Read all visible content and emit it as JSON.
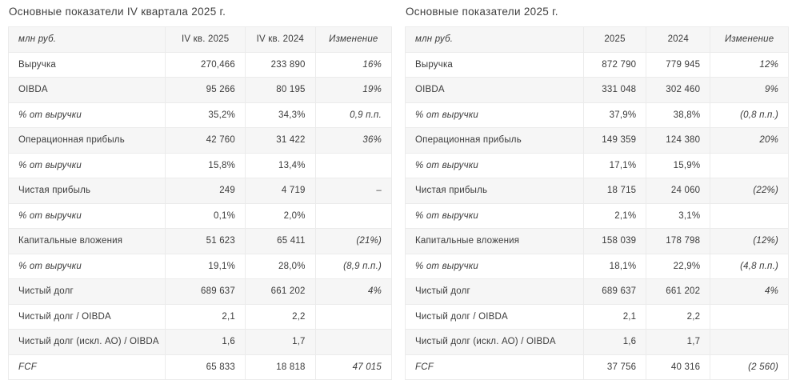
{
  "colors": {
    "background": "#ffffff",
    "stripe_row": "#f6f6f6",
    "border": "#ebebeb",
    "text": "#3b3b3b",
    "title": "#3f3f3f"
  },
  "tables": [
    {
      "title": "Основные показатели IV квартала 2025 г.",
      "columns": [
        "млн руб.",
        "IV кв. 2025",
        "IV кв. 2024",
        "Изменение"
      ],
      "rows": [
        {
          "label": "Выручка",
          "v1": "270,466",
          "v2": "233 890",
          "change": "16%",
          "italic": false
        },
        {
          "label": "OIBDA",
          "v1": "95 266",
          "v2": "80 195",
          "change": "19%",
          "italic": false
        },
        {
          "label": "% от выручки",
          "v1": "35,2%",
          "v2": "34,3%",
          "change": "0,9 п.п.",
          "italic": true
        },
        {
          "label": "Операционная прибыль",
          "v1": "42 760",
          "v2": "31 422",
          "change": "36%",
          "italic": false
        },
        {
          "label": "% от выручки",
          "v1": "15,8%",
          "v2": "13,4%",
          "change": "",
          "italic": true
        },
        {
          "label": "Чистая прибыль",
          "v1": "249",
          "v2": "4 719",
          "change": "–",
          "italic": false
        },
        {
          "label": "% от выручки",
          "v1": "0,1%",
          "v2": "2,0%",
          "change": "",
          "italic": true
        },
        {
          "label": "Капитальные вложения",
          "v1": "51 623",
          "v2": "65 411",
          "change": "(21%)",
          "italic": false
        },
        {
          "label": "% от выручки",
          "v1": "19,1%",
          "v2": "28,0%",
          "change": "(8,9 п.п.)",
          "italic": true
        },
        {
          "label": "Чистый долг",
          "v1": "689 637",
          "v2": "661 202",
          "change": "4%",
          "italic": false
        },
        {
          "label": "Чистый долг / OIBDA",
          "v1": "2,1",
          "v2": "2,2",
          "change": "",
          "italic": false
        },
        {
          "label": "Чистый долг (искл. АО) / OIBDA",
          "v1": "1,6",
          "v2": "1,7",
          "change": "",
          "italic": false
        },
        {
          "label": "FCF",
          "v1": "65 833",
          "v2": "18 818",
          "change": "47 015",
          "italic": true
        }
      ]
    },
    {
      "title": "Основные показатели 2025 г.",
      "columns": [
        "млн руб.",
        "2025",
        "2024",
        "Изменение"
      ],
      "rows": [
        {
          "label": "Выручка",
          "v1": "872 790",
          "v2": "779 945",
          "change": "12%",
          "italic": false
        },
        {
          "label": "OIBDA",
          "v1": "331 048",
          "v2": "302 460",
          "change": "9%",
          "italic": false
        },
        {
          "label": "% от выручки",
          "v1": "37,9%",
          "v2": "38,8%",
          "change": "(0,8 п.п.)",
          "italic": true
        },
        {
          "label": "Операционная прибыль",
          "v1": "149 359",
          "v2": "124 380",
          "change": "20%",
          "italic": false
        },
        {
          "label": "% от выручки",
          "v1": "17,1%",
          "v2": "15,9%",
          "change": "",
          "italic": true
        },
        {
          "label": "Чистая прибыль",
          "v1": "18 715",
          "v2": "24 060",
          "change": "(22%)",
          "italic": false
        },
        {
          "label": "% от выручки",
          "v1": "2,1%",
          "v2": "3,1%",
          "change": "",
          "italic": true
        },
        {
          "label": "Капитальные вложения",
          "v1": "158 039",
          "v2": "178 798",
          "change": "(12%)",
          "italic": false
        },
        {
          "label": "% от выручки",
          "v1": "18,1%",
          "v2": "22,9%",
          "change": "(4,8 п.п.)",
          "italic": true
        },
        {
          "label": "Чистый долг",
          "v1": "689 637",
          "v2": "661 202",
          "change": "4%",
          "italic": false
        },
        {
          "label": "Чистый долг / OIBDA",
          "v1": "2,1",
          "v2": "2,2",
          "change": "",
          "italic": false
        },
        {
          "label": "Чистый долг (искл. АО) / OIBDA",
          "v1": "1,6",
          "v2": "1,7",
          "change": "",
          "italic": false
        },
        {
          "label": "FCF",
          "v1": "37 756",
          "v2": "40 316",
          "change": "(2 560)",
          "italic": true
        }
      ]
    }
  ]
}
